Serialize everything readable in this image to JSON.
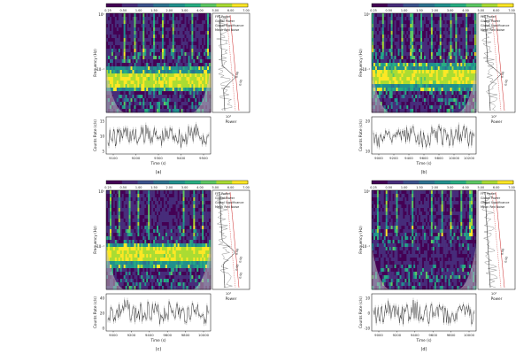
{
  "colorbar": {
    "ticks": [
      "0.25",
      "0.50",
      "1.00",
      "1.50",
      "2.00",
      "3.00",
      "4.00",
      "5.00",
      "6.00",
      "7.00"
    ],
    "colors": [
      "#440154",
      "#472c7a",
      "#3b518b",
      "#2c718e",
      "#21908d",
      "#27ad81",
      "#5cc863",
      "#aadc32",
      "#fde725"
    ]
  },
  "colors": {
    "fft_power": "#777777",
    "global_power": "#111111",
    "global_significance": "#cc2222",
    "mean_red_noise": "#cc2222",
    "coi": "#bbbbbb"
  },
  "legend": [
    "FFT Power",
    "Global Power",
    "Global Significance",
    "Mean Red Noise"
  ],
  "labels": {
    "frequency": "Frequency (Hz)",
    "power": "Power",
    "counts_rate": "Counts Rate (c/s)",
    "time": "Time (s)"
  },
  "panels": [
    {
      "id": "a",
      "caption": "(a)",
      "freq_ticks": [
        "10⁰",
        "10⁻¹"
      ],
      "power_tick": "10²",
      "sig_labels": [
        "0.99",
        "0.95"
      ],
      "time_ticks": [
        "9100",
        "9200",
        "9300",
        "9400",
        "9500"
      ],
      "counts_ticks": [
        "15",
        "10",
        "5"
      ],
      "band_pos": 0.65,
      "band_width": 0.07,
      "band_strength": 1.0,
      "coi_deep": true
    },
    {
      "id": "b",
      "caption": "(b)",
      "freq_ticks": [
        "10⁰",
        "10⁻¹"
      ],
      "power_tick": "10²",
      "sig_labels": [
        "0.99",
        "0.95"
      ],
      "time_ticks": [
        "9000",
        "9200",
        "9400",
        "9600",
        "9800",
        "10000",
        "10200"
      ],
      "counts_ticks": [
        "20",
        "10"
      ],
      "band_pos": 0.62,
      "band_width": 0.08,
      "band_strength": 1.0,
      "coi_deep": true
    },
    {
      "id": "c",
      "caption": "(c)",
      "freq_ticks": [
        "10⁰",
        "10⁻¹"
      ],
      "power_tick": "10²",
      "sig_labels": [
        "0.99",
        "0.95",
        "0.99",
        "0.95"
      ],
      "time_ticks": [
        "9000",
        "9200",
        "9400",
        "9600",
        "9800",
        "10000"
      ],
      "counts_ticks": [
        "40",
        "20",
        "0"
      ],
      "band_pos": 0.63,
      "band_width": 0.07,
      "band_strength": 1.0,
      "coi_deep": true
    },
    {
      "id": "d",
      "caption": "(d)",
      "freq_ticks": [
        "10⁰",
        "10⁻¹"
      ],
      "power_tick": "10²",
      "sig_labels": [
        "0.99",
        "0.95"
      ],
      "time_ticks": [
        "9000",
        "9200",
        "9400",
        "9600",
        "9800",
        "10000"
      ],
      "counts_ticks": [
        "10",
        "0",
        "-10"
      ],
      "band_pos": 0.7,
      "band_width": 0.0,
      "band_strength": 0.0,
      "coi_deep": true
    }
  ]
}
